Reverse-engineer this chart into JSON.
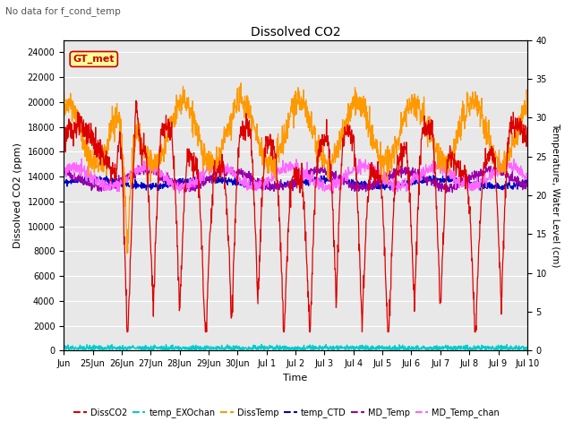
{
  "title": "Dissolved CO2",
  "subtitle": "No data for f_cond_temp",
  "xlabel": "Time",
  "ylabel_left": "Dissolved CO2 (ppm)",
  "ylabel_right": "Temperature, Water Level (cm)",
  "ylim_left": [
    0,
    25000
  ],
  "ylim_right": [
    0,
    40
  ],
  "yticks_left": [
    0,
    2000,
    4000,
    6000,
    8000,
    10000,
    12000,
    14000,
    16000,
    18000,
    20000,
    22000,
    24000
  ],
  "yticks_right": [
    0,
    5,
    10,
    15,
    20,
    25,
    30,
    35,
    40
  ],
  "bg_color": "#e8e8e8",
  "annotation_box": {
    "text": "GT_met",
    "color": "#cc0000",
    "bg": "#ffff99",
    "edgecolor": "#cc0000"
  },
  "xtick_labels": [
    "Jun",
    "25Jun",
    "26Jun",
    "27Jun",
    "28Jun",
    "29Jun",
    "30Jun",
    "Jul 1",
    "Jul 2",
    "Jul 3",
    "Jul 4",
    "Jul 5",
    "Jul 6",
    "Jul 7",
    "Jul 8",
    "Jul 9",
    "Jul 10"
  ],
  "colors": {
    "DissCO2": "#dd0000",
    "temp_EXOchan": "#00cccc",
    "DissTemp": "#ff9900",
    "temp_CTD": "#0000cc",
    "MD_Temp": "#9900aa",
    "MD_Temp_chan": "#ff66ff"
  }
}
